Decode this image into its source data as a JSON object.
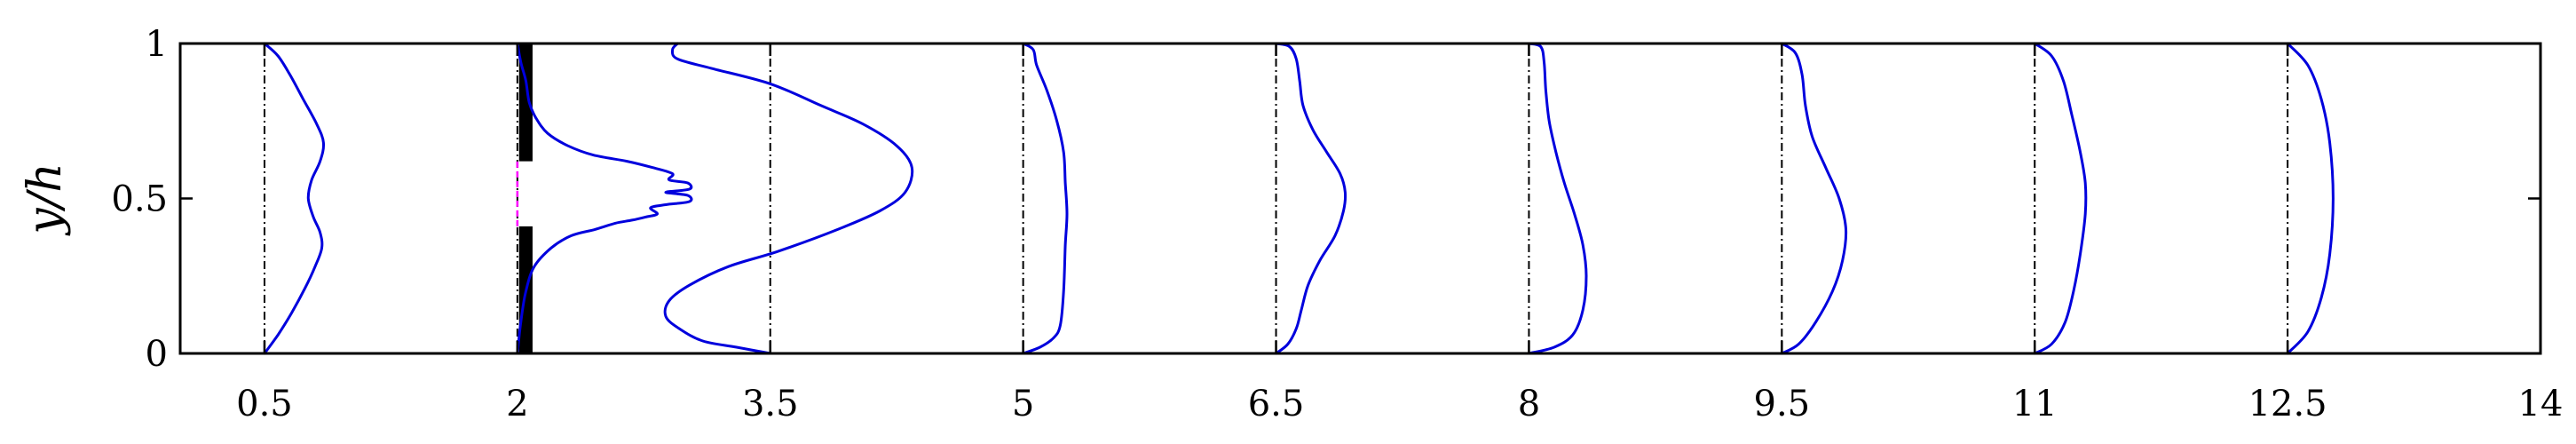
{
  "chart_data": {
    "type": "line",
    "title": "",
    "xlabel": "",
    "ylabel": "y/h",
    "xlim": [
      0,
      14
    ],
    "ylim": [
      0,
      1
    ],
    "x_ticks": [
      0.5,
      2,
      3.5,
      5,
      6.5,
      8,
      9.5,
      11,
      12.5,
      14
    ],
    "x_tick_labels": [
      "0.5",
      "2",
      "3.5",
      "5",
      "6.5",
      "8",
      "9.5",
      "11",
      "12.5",
      "14"
    ],
    "y_ticks": [
      0,
      0.5,
      1
    ],
    "y_tick_labels": [
      "0",
      "0.5",
      "1"
    ],
    "grid": false,
    "legend": "none",
    "colors": {
      "profile": "#0000dd",
      "reference": "#000000",
      "obstacle": "#000000",
      "gap_line": "#ff00ff"
    },
    "obstacle": {
      "x": 2.05,
      "width": 0.08,
      "blocks": [
        [
          0,
          0.41
        ],
        [
          0.62,
          1.0
        ]
      ],
      "gap": [
        0.41,
        0.62
      ]
    },
    "series": [
      {
        "station": 0.5,
        "profile": [
          [
            0.5,
            0.0
          ],
          [
            0.58,
            0.06
          ],
          [
            0.66,
            0.13
          ],
          [
            0.74,
            0.21
          ],
          [
            0.8,
            0.28
          ],
          [
            0.84,
            0.34
          ],
          [
            0.83,
            0.39
          ],
          [
            0.79,
            0.44
          ],
          [
            0.76,
            0.5
          ],
          [
            0.78,
            0.56
          ],
          [
            0.83,
            0.62
          ],
          [
            0.85,
            0.68
          ],
          [
            0.81,
            0.74
          ],
          [
            0.73,
            0.82
          ],
          [
            0.65,
            0.9
          ],
          [
            0.58,
            0.96
          ],
          [
            0.5,
            1.0
          ]
        ]
      },
      {
        "station": 2,
        "profile": [
          [
            2.0,
            0.0
          ],
          [
            2.02,
            0.1
          ],
          [
            2.05,
            0.2
          ],
          [
            2.1,
            0.28
          ],
          [
            2.2,
            0.34
          ],
          [
            2.32,
            0.38
          ],
          [
            2.46,
            0.4
          ],
          [
            2.58,
            0.42
          ],
          [
            2.68,
            0.43
          ],
          [
            2.76,
            0.44
          ],
          [
            2.83,
            0.45
          ],
          [
            2.79,
            0.47
          ],
          [
            2.88,
            0.48
          ],
          [
            3.02,
            0.49
          ],
          [
            3.01,
            0.51
          ],
          [
            2.88,
            0.52
          ],
          [
            3.02,
            0.53
          ],
          [
            3.01,
            0.55
          ],
          [
            2.9,
            0.56
          ],
          [
            2.92,
            0.58
          ],
          [
            2.8,
            0.6
          ],
          [
            2.65,
            0.62
          ],
          [
            2.45,
            0.64
          ],
          [
            2.3,
            0.67
          ],
          [
            2.18,
            0.71
          ],
          [
            2.11,
            0.76
          ],
          [
            2.07,
            0.81
          ],
          [
            2.05,
            0.88
          ],
          [
            2.02,
            0.94
          ],
          [
            2.0,
            1.0
          ]
        ]
      },
      {
        "station": 3.5,
        "profile": [
          [
            3.5,
            0.0
          ],
          [
            3.3,
            0.02
          ],
          [
            3.1,
            0.04
          ],
          [
            2.96,
            0.08
          ],
          [
            2.88,
            0.12
          ],
          [
            2.9,
            0.17
          ],
          [
            3.02,
            0.22
          ],
          [
            3.25,
            0.28
          ],
          [
            3.55,
            0.33
          ],
          [
            3.9,
            0.4
          ],
          [
            4.15,
            0.46
          ],
          [
            4.3,
            0.52
          ],
          [
            4.34,
            0.6
          ],
          [
            4.25,
            0.67
          ],
          [
            4.05,
            0.74
          ],
          [
            3.8,
            0.8
          ],
          [
            3.5,
            0.87
          ],
          [
            3.15,
            0.92
          ],
          [
            2.95,
            0.95
          ],
          [
            2.92,
            0.98
          ],
          [
            2.95,
            1.0
          ]
        ]
      },
      {
        "station": 5,
        "profile": [
          [
            5.0,
            0.0
          ],
          [
            5.1,
            0.02
          ],
          [
            5.18,
            0.05
          ],
          [
            5.22,
            0.09
          ],
          [
            5.24,
            0.2
          ],
          [
            5.25,
            0.35
          ],
          [
            5.26,
            0.45
          ],
          [
            5.25,
            0.55
          ],
          [
            5.24,
            0.65
          ],
          [
            5.2,
            0.75
          ],
          [
            5.14,
            0.85
          ],
          [
            5.08,
            0.93
          ],
          [
            5.06,
            0.98
          ],
          [
            5.0,
            1.0
          ]
        ]
      },
      {
        "station": 6.5,
        "profile": [
          [
            6.5,
            0.0
          ],
          [
            6.57,
            0.03
          ],
          [
            6.62,
            0.08
          ],
          [
            6.65,
            0.14
          ],
          [
            6.69,
            0.22
          ],
          [
            6.76,
            0.3
          ],
          [
            6.85,
            0.38
          ],
          [
            6.9,
            0.46
          ],
          [
            6.91,
            0.52
          ],
          [
            6.88,
            0.58
          ],
          [
            6.8,
            0.65
          ],
          [
            6.72,
            0.72
          ],
          [
            6.66,
            0.8
          ],
          [
            6.64,
            0.88
          ],
          [
            6.62,
            0.95
          ],
          [
            6.58,
            0.99
          ],
          [
            6.5,
            1.0
          ]
        ]
      },
      {
        "station": 8,
        "profile": [
          [
            8.0,
            0.0
          ],
          [
            8.15,
            0.02
          ],
          [
            8.26,
            0.06
          ],
          [
            8.32,
            0.14
          ],
          [
            8.34,
            0.25
          ],
          [
            8.32,
            0.35
          ],
          [
            8.27,
            0.45
          ],
          [
            8.21,
            0.55
          ],
          [
            8.16,
            0.65
          ],
          [
            8.12,
            0.75
          ],
          [
            8.1,
            0.85
          ],
          [
            8.09,
            0.94
          ],
          [
            8.07,
            0.99
          ],
          [
            8.0,
            1.0
          ]
        ]
      },
      {
        "station": 9.5,
        "profile": [
          [
            9.5,
            0.0
          ],
          [
            9.6,
            0.03
          ],
          [
            9.7,
            0.1
          ],
          [
            9.8,
            0.2
          ],
          [
            9.86,
            0.3
          ],
          [
            9.88,
            0.4
          ],
          [
            9.84,
            0.5
          ],
          [
            9.76,
            0.6
          ],
          [
            9.68,
            0.7
          ],
          [
            9.64,
            0.8
          ],
          [
            9.62,
            0.9
          ],
          [
            9.58,
            0.97
          ],
          [
            9.5,
            1.0
          ]
        ]
      },
      {
        "station": 11,
        "profile": [
          [
            11.0,
            0.0
          ],
          [
            11.1,
            0.03
          ],
          [
            11.18,
            0.1
          ],
          [
            11.23,
            0.2
          ],
          [
            11.27,
            0.32
          ],
          [
            11.3,
            0.45
          ],
          [
            11.3,
            0.55
          ],
          [
            11.27,
            0.65
          ],
          [
            11.22,
            0.77
          ],
          [
            11.17,
            0.88
          ],
          [
            11.1,
            0.96
          ],
          [
            11.0,
            1.0
          ]
        ]
      },
      {
        "station": 12.5,
        "profile": [
          [
            12.5,
            0.0
          ],
          [
            12.62,
            0.07
          ],
          [
            12.7,
            0.18
          ],
          [
            12.75,
            0.32
          ],
          [
            12.77,
            0.5
          ],
          [
            12.75,
            0.68
          ],
          [
            12.7,
            0.82
          ],
          [
            12.62,
            0.93
          ],
          [
            12.5,
            1.0
          ]
        ]
      }
    ]
  }
}
